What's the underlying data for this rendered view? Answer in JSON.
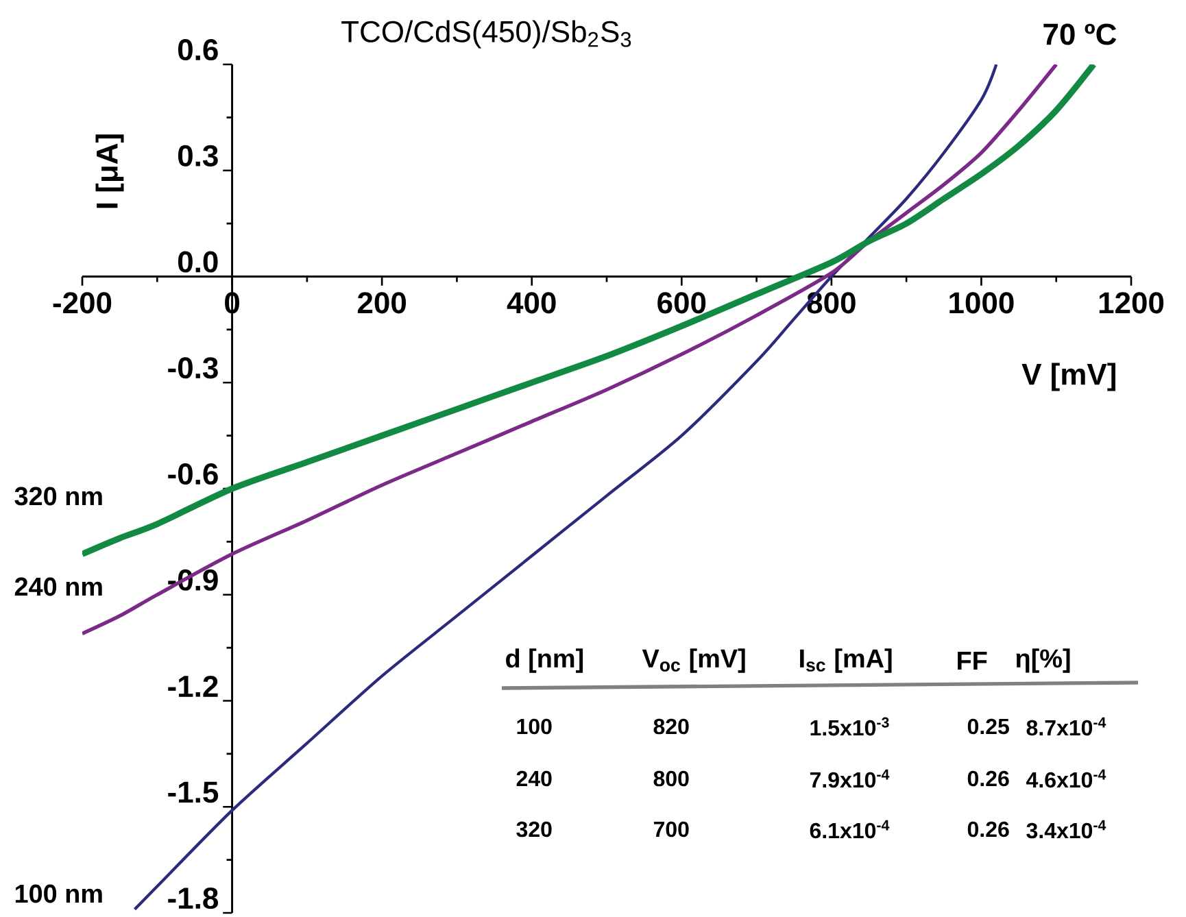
{
  "chart_data": {
    "type": "line",
    "title": "TCO/CdS(450)/Sb$_{2}$S$_{3}$",
    "xlabel": "V [mV]",
    "ylabel": "I [μA]",
    "xlim": [
      -200,
      1200
    ],
    "ylim": [
      -1.8,
      0.6
    ],
    "xticks": [
      -200,
      0,
      200,
      400,
      600,
      800,
      1000,
      1200
    ],
    "yticks": [
      -1.8,
      -1.5,
      -1.2,
      -0.9,
      -0.6,
      -0.3,
      {
        "value": 0,
        "label": "0.0"
      },
      0.3,
      0.6
    ],
    "series": [
      {
        "name": "100 nm",
        "color": "#2b2a7c",
        "x": [
          -130,
          -100,
          0,
          100,
          200,
          300,
          400,
          500,
          600,
          700,
          750,
          800,
          850,
          900,
          950,
          1000,
          1020
        ],
        "values": [
          -1.79,
          -1.725,
          -1.51,
          -1.32,
          -1.13,
          -0.96,
          -0.79,
          -0.62,
          -0.45,
          -0.24,
          -0.12,
          0.0,
          0.11,
          0.22,
          0.35,
          0.5,
          0.6
        ]
      },
      {
        "name": "240 nm",
        "color": "#7b2a87",
        "x": [
          -200,
          -150,
          -100,
          0,
          100,
          200,
          300,
          400,
          500,
          600,
          700,
          800,
          850,
          900,
          950,
          1000,
          1050,
          1100
        ],
        "values": [
          -1.01,
          -0.96,
          -0.9,
          -0.785,
          -0.69,
          -0.59,
          -0.5,
          -0.41,
          -0.32,
          -0.22,
          -0.11,
          0.01,
          0.1,
          0.18,
          0.26,
          0.35,
          0.47,
          0.6
        ]
      },
      {
        "name": "320 nm",
        "color": "#138a43",
        "x": [
          -200,
          -150,
          -100,
          0,
          100,
          200,
          300,
          400,
          500,
          600,
          700,
          800,
          850,
          900,
          950,
          1000,
          1050,
          1100,
          1150
        ],
        "values": [
          -0.785,
          -0.74,
          -0.7,
          -0.6,
          -0.525,
          -0.45,
          -0.375,
          -0.3,
          -0.225,
          -0.14,
          -0.05,
          0.04,
          0.1,
          0.15,
          0.22,
          0.29,
          0.37,
          0.47,
          0.6
        ]
      }
    ],
    "annotations": [
      "70 ºC",
      "d [nm]",
      "V$_{oc}$ [mV]",
      "I$_{sc}$ [mA]",
      "FF",
      "η[%]",
      "100",
      "820",
      "1.5x10$^{-3}$",
      "0.25",
      "8.7x10$^{-4}$",
      "240",
      "800",
      "7.9x10$^{-4}$",
      "0.26",
      "4.6x10$^{-4}$",
      "320",
      "700",
      "6.1x10$^{-4}$",
      "0.26",
      "3.4x10$^{-4}$"
    ]
  }
}
